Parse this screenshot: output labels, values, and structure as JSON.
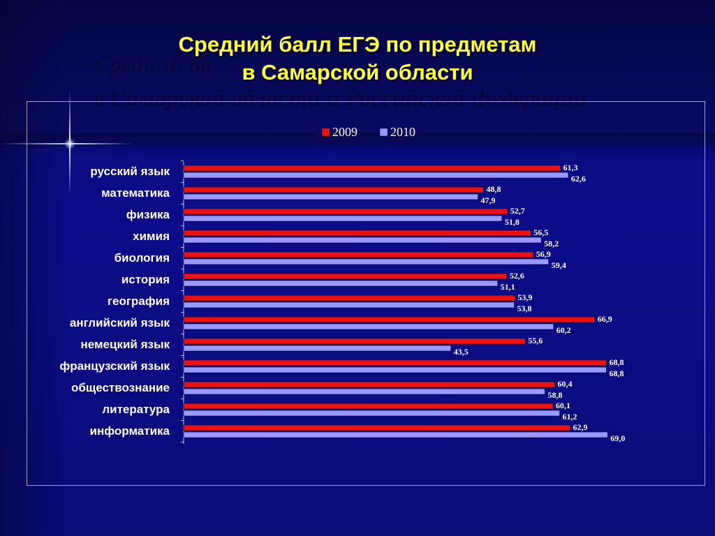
{
  "slide": {
    "title_line1": "Средний балл ЕГЭ по предметам",
    "title_line2": "в Самарской области",
    "ghost_line1": "Средний ба",
    "ghost_line2": "в Самарской области и Российской Федерации"
  },
  "colors": {
    "series_2009": "#ee1111",
    "series_2010": "#9999ff",
    "title": "#ffff33",
    "labels": "#ffffff"
  },
  "chart_data": {
    "type": "bar",
    "orientation": "horizontal",
    "categories": [
      "русский язык",
      "математика",
      "физика",
      "химия",
      "биология",
      "история",
      "география",
      "английский язык",
      "немецкий язык",
      "французский язык",
      "обществознание",
      "литература",
      "информатика"
    ],
    "series": [
      {
        "name": "2009",
        "values": [
          61.3,
          48.8,
          52.7,
          56.5,
          56.9,
          52.6,
          53.9,
          66.9,
          55.6,
          68.8,
          60.4,
          60.1,
          62.9
        ],
        "labels": [
          "61,3",
          "48,8",
          "52,7",
          "56,5",
          "56,9",
          "52,6",
          "53,9",
          "66,9",
          "55,6",
          "68,8",
          "60,4",
          "60,1",
          "62,9"
        ]
      },
      {
        "name": "2010",
        "values": [
          62.6,
          47.9,
          51.8,
          58.2,
          59.4,
          51.1,
          53.8,
          60.2,
          43.5,
          68.8,
          58.8,
          61.2,
          69.0
        ],
        "labels": [
          "62,6",
          "47,9",
          "51,8",
          "58,2",
          "59,4",
          "51,1",
          "53,8",
          "60,2",
          "43,5",
          "68,8",
          "58,8",
          "61,2",
          "69,0"
        ]
      }
    ],
    "legend": [
      "2009",
      "2010"
    ],
    "legend_position": "top",
    "xlim": [
      0,
      70
    ],
    "title": "",
    "xlabel": "",
    "ylabel": ""
  }
}
